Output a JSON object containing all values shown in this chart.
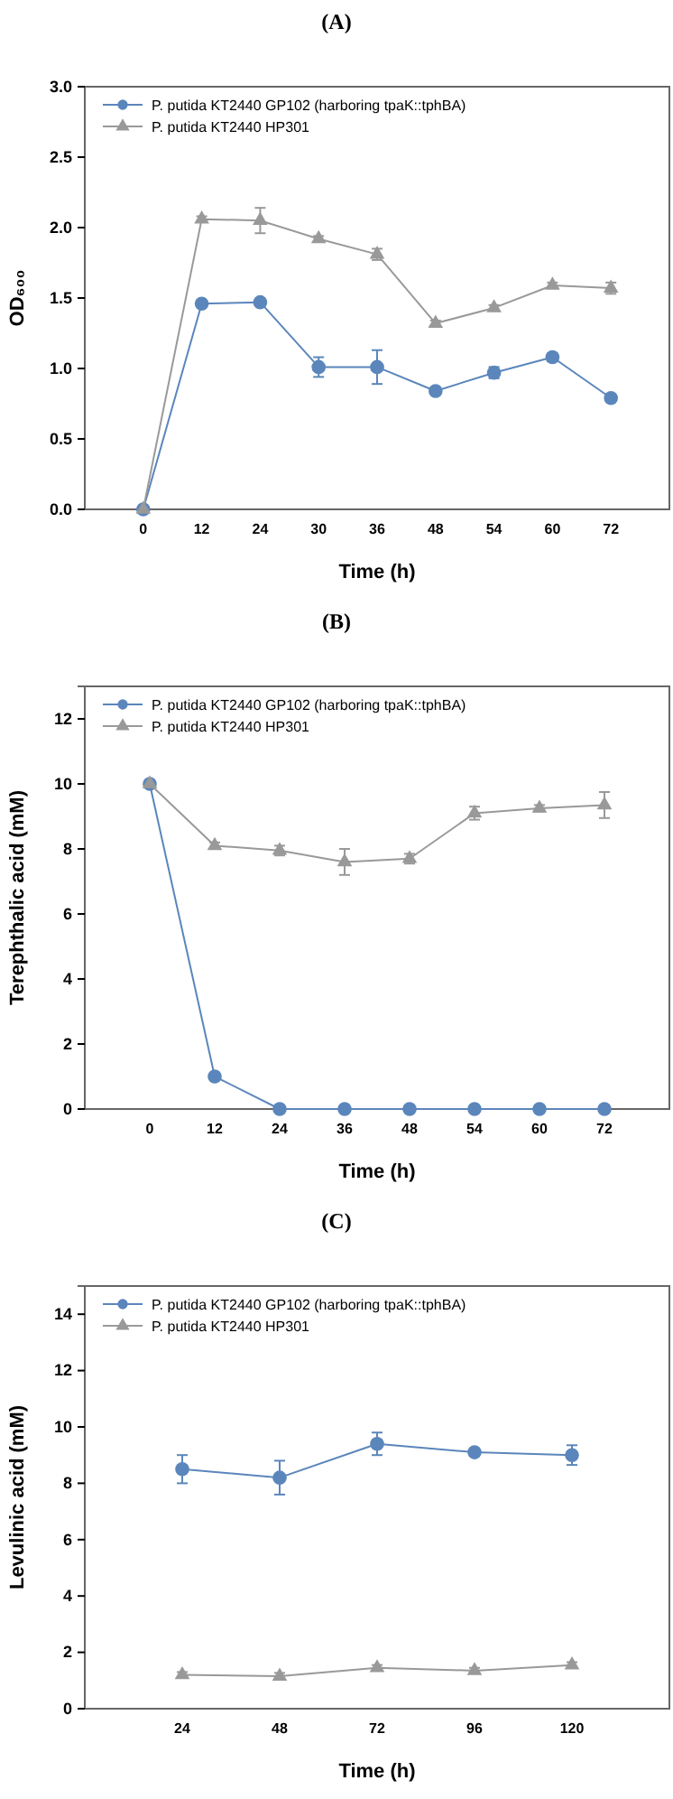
{
  "chart_data": [
    {
      "type": "line",
      "title": "(A)",
      "xlabel": "Time (h)",
      "ylabel": "OD₆₀₀",
      "categories": [
        "0",
        "12",
        "24",
        "30",
        "36",
        "48",
        "54",
        "60",
        "72"
      ],
      "ylim": [
        0,
        3
      ],
      "yticks": [
        {
          "value": 0,
          "label": "0.0"
        },
        {
          "value": 0.5,
          "label": "0.5"
        },
        {
          "value": 1,
          "label": "1.0"
        },
        {
          "value": 1.5,
          "label": "1.5"
        },
        {
          "value": 2,
          "label": "2.0"
        },
        {
          "value": 2.5,
          "label": "2.5"
        },
        {
          "value": 3,
          "label": "3.0"
        }
      ],
      "legend": "top left",
      "grid": false,
      "series": [
        {
          "name": "P. putida KT2440 GP102 (harboring tpaK::tphBA)",
          "color": "#5b86bb",
          "marker": "circle",
          "values": [
            0,
            1.46,
            1.47,
            1.01,
            1.01,
            0.84,
            0.97,
            1.08,
            0.79
          ],
          "errors": [
            null,
            0.02,
            0.02,
            0.07,
            0.12,
            0.02,
            0.04,
            0.03,
            0.02
          ]
        },
        {
          "name": "P. putida KT2440 HP301",
          "color": "#999999",
          "marker": "triangle",
          "values": [
            0,
            2.06,
            2.05,
            1.92,
            1.81,
            1.32,
            1.43,
            1.59,
            1.57
          ],
          "errors": [
            null,
            0.02,
            0.09,
            0.02,
            0.04,
            0.02,
            0.02,
            0.02,
            0.04
          ]
        }
      ]
    },
    {
      "type": "line",
      "title": "(B)",
      "xlabel": "Time (h)",
      "ylabel": "Terephthalic acid (mM)",
      "categories": [
        "0",
        "12",
        "24",
        "36",
        "48",
        "54",
        "60",
        "72"
      ],
      "ylim": [
        0,
        13
      ],
      "yticks": [
        0,
        2,
        4,
        6,
        8,
        10,
        12
      ],
      "legend": "top left",
      "grid": false,
      "series": [
        {
          "name": "P. putida KT2440 GP102 (harboring tpaK::tphBA)",
          "color": "#5b86bb",
          "marker": "circle",
          "values": [
            10,
            1,
            0,
            0,
            0,
            0,
            0,
            0
          ],
          "errors": [
            null,
            0.1,
            null,
            null,
            null,
            null,
            null,
            null
          ]
        },
        {
          "name": "P. putida KT2440 HP301",
          "color": "#999999",
          "marker": "triangle",
          "values": [
            10,
            8.1,
            7.95,
            7.6,
            7.7,
            9.1,
            9.25,
            9.35
          ],
          "errors": [
            null,
            0.1,
            0.15,
            0.4,
            0.15,
            0.2,
            0.1,
            0.4
          ]
        }
      ]
    },
    {
      "type": "line",
      "title": "(C)",
      "xlabel": "Time (h)",
      "ylabel": "Levulinic acid (mM)",
      "categories": [
        "24",
        "48",
        "72",
        "96",
        "120"
      ],
      "ylim": [
        0,
        15
      ],
      "yticks": [
        0,
        2,
        4,
        6,
        8,
        10,
        12,
        14
      ],
      "legend": "top left",
      "grid": false,
      "series": [
        {
          "name": "P. putida KT2440 GP102 (harboring tpaK::tphBA)",
          "color": "#5b86bb",
          "marker": "circle",
          "values": [
            8.5,
            8.2,
            9.4,
            9.1,
            9.0
          ],
          "errors": [
            0.5,
            0.6,
            0.4,
            0.1,
            0.35
          ]
        },
        {
          "name": "P. putida KT2440 HP301",
          "color": "#999999",
          "marker": "triangle",
          "values": [
            1.2,
            1.15,
            1.45,
            1.35,
            1.55
          ],
          "errors": [
            0.1,
            0.12,
            0.1,
            0.1,
            0.1
          ]
        }
      ]
    }
  ]
}
